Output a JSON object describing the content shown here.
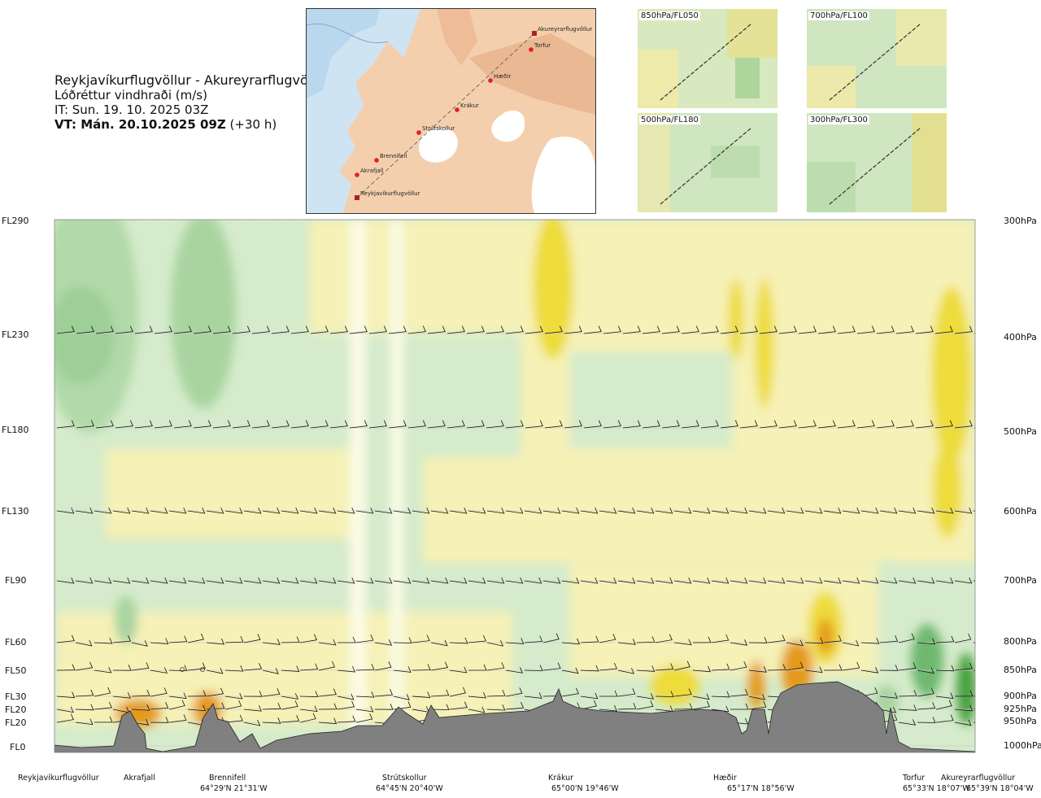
{
  "header": {
    "route": "Reykjavíkurflugvöllur - Akureyrarflugvöllur",
    "variable": "Lóðréttur vindhraði (m/s)",
    "init_time": "IT: Sun. 19. 10. 2025 03Z",
    "valid_time": "VT: Mán. 20.10.2025 09Z",
    "lead": "(+30 h)"
  },
  "map": {
    "waypoints": [
      "Akureyrarflugvöllur",
      "Torfur",
      "Hæðir",
      "Krákur",
      "Strútskollur",
      "Brennifell",
      "Akrafjall",
      "Reykjavíkurflugvöllur"
    ]
  },
  "mini_maps": [
    {
      "label": "850hPa/FL050"
    },
    {
      "label": "700hPa/FL100"
    },
    {
      "label": "500hPa/FL180"
    },
    {
      "label": "300hPa/FL300"
    }
  ],
  "chart_data": {
    "type": "heatmap",
    "title": "Lóðréttur vindhraði (m/s)",
    "x_stations": [
      {
        "name": "Reykjavíkurflugvöllur",
        "coord": ""
      },
      {
        "name": "Akrafjall",
        "coord": ""
      },
      {
        "name": "Brennifell",
        "coord": "64°29'N 21°31'W"
      },
      {
        "name": "Strútskollur",
        "coord": "64°45'N 20°40'W"
      },
      {
        "name": "Krákur",
        "coord": "65°00'N 19°46'W"
      },
      {
        "name": "Hæðir",
        "coord": "65°17'N 18°56'W"
      },
      {
        "name": "Torfur",
        "coord": "65°33'N 18°07'W"
      },
      {
        "name": "Akureyrarflugvöllur",
        "coord": "65°39'N 18°04'W"
      }
    ],
    "flight_levels": [
      "FL290",
      "FL230",
      "FL180",
      "FL130",
      "FL90",
      "FL60",
      "FL50",
      "FL30",
      "FL20",
      "FL20",
      "FL0"
    ],
    "pressure_levels": [
      "300hPa",
      "400hPa",
      "500hPa",
      "600hPa",
      "700hPa",
      "800hPa",
      "850hPa",
      "900hPa",
      "925hPa",
      "950hPa",
      "1000hPa"
    ],
    "pressure_values": [
      300,
      400,
      500,
      600,
      700,
      800,
      850,
      900,
      925,
      950,
      1000
    ],
    "yrange_hpa": [
      1000,
      300
    ],
    "legend": "none",
    "colors": {
      "strong_down": "#6fb86f",
      "down": "#a9d4a0",
      "weak_down": "#cfe8c6",
      "neutral": "#f8f8dc",
      "weak_up": "#f4eeaa",
      "up": "#eedc3a",
      "strong_up": "#e59a1f",
      "very_strong_up": "#a05a20",
      "terrain": "#808080"
    }
  }
}
